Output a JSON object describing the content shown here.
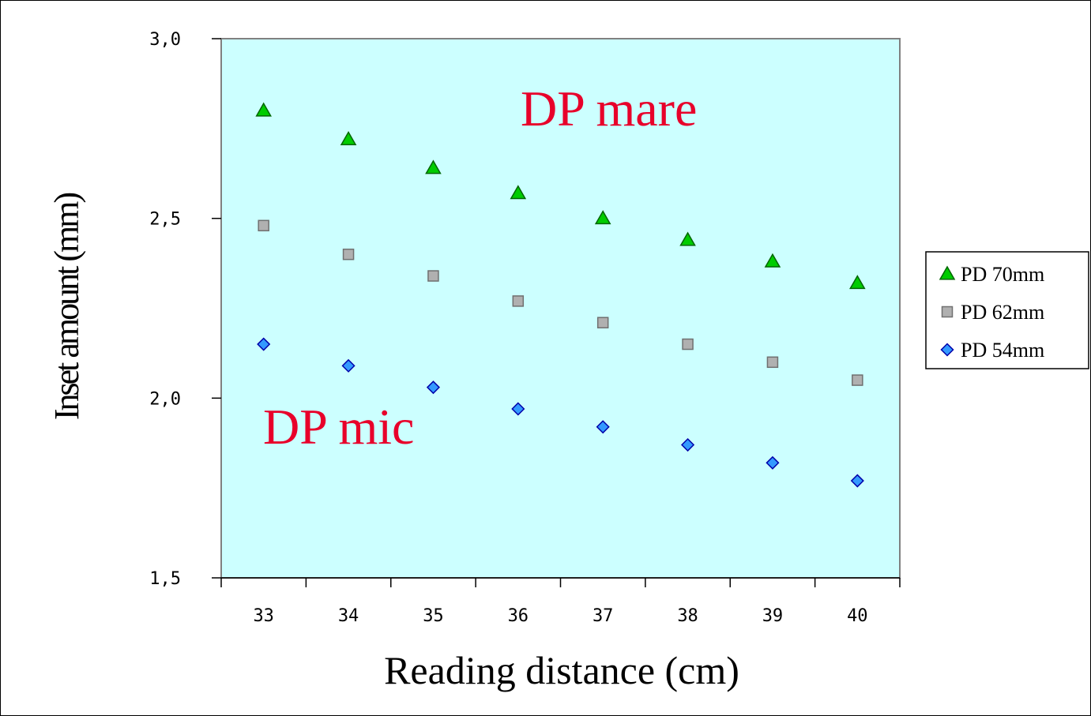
{
  "chart_data": {
    "type": "scatter",
    "xlabel": "Reading distance (cm)",
    "ylabel": "Inset amount (mm)",
    "categories": [
      "33",
      "34",
      "35",
      "36",
      "37",
      "38",
      "39",
      "40"
    ],
    "ylim": [
      1.5,
      3.0
    ],
    "yticks": [
      "1,5",
      "2,0",
      "2,5",
      "3,0"
    ],
    "ytick_values": [
      1.5,
      2.0,
      2.5,
      3.0
    ],
    "grid": false,
    "plot_background": "#ccffff",
    "legend_position": "right",
    "series": [
      {
        "name": "PD 70mm",
        "marker": "triangle",
        "color": "#00cc00",
        "values": [
          2.8,
          2.72,
          2.64,
          2.57,
          2.5,
          2.44,
          2.38,
          2.32
        ]
      },
      {
        "name": "PD 62mm",
        "marker": "square",
        "color": "#b0b0b0",
        "values": [
          2.48,
          2.4,
          2.34,
          2.27,
          2.21,
          2.15,
          2.1,
          2.05
        ]
      },
      {
        "name": "PD 54mm",
        "marker": "diamond",
        "color": "#3399ff",
        "values": [
          2.15,
          2.09,
          2.03,
          1.97,
          1.92,
          1.87,
          1.82,
          1.77
        ]
      }
    ],
    "annotations": [
      {
        "text": "DP mare",
        "color": "#e8002a"
      },
      {
        "text": "DP mic",
        "color": "#e8002a"
      }
    ]
  }
}
